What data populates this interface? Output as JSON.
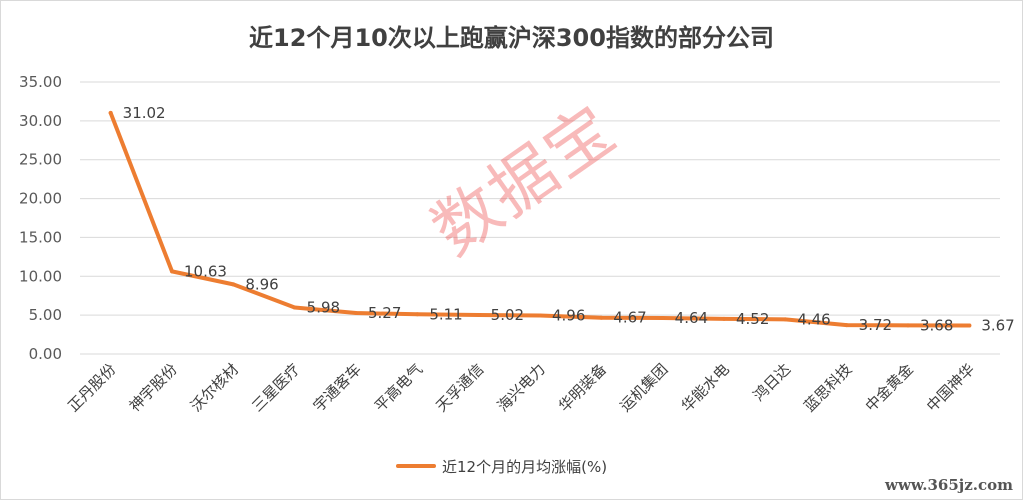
{
  "chart_data": {
    "type": "line",
    "title": "近12个月10次以上跑赢沪深300指数的部分公司",
    "categories": [
      "正丹股份",
      "神宇股份",
      "沃尔核材",
      "三星医疗",
      "宇通客车",
      "平高电气",
      "天孚通信",
      "海兴电力",
      "华明装备",
      "运机集团",
      "华能水电",
      "鸿日达",
      "蓝思科技",
      "中金黄金",
      "中国神华"
    ],
    "series": [
      {
        "name": "近12个月的月均涨幅(%)",
        "values": [
          31.02,
          10.63,
          8.96,
          5.98,
          5.27,
          5.11,
          5.02,
          4.96,
          4.67,
          4.64,
          4.52,
          4.46,
          3.72,
          3.68,
          3.67
        ],
        "color": "#ED7D31"
      }
    ],
    "data_labels": [
      "31.02",
      "10.63",
      "8.96",
      "5.98",
      "5.27",
      "5.11",
      "5.02",
      "4.96",
      "4.67",
      "4.64",
      "4.52",
      "4.46",
      "3.72",
      "3.68",
      "3.67"
    ],
    "yticks": [
      "0.00",
      "5.00",
      "10.00",
      "15.00",
      "20.00",
      "25.00",
      "30.00",
      "35.00"
    ],
    "ylim": [
      0,
      35
    ],
    "grid": true,
    "legend_position": "bottom"
  },
  "watermark": "数据宝",
  "site_mark": "www.365jz.com"
}
